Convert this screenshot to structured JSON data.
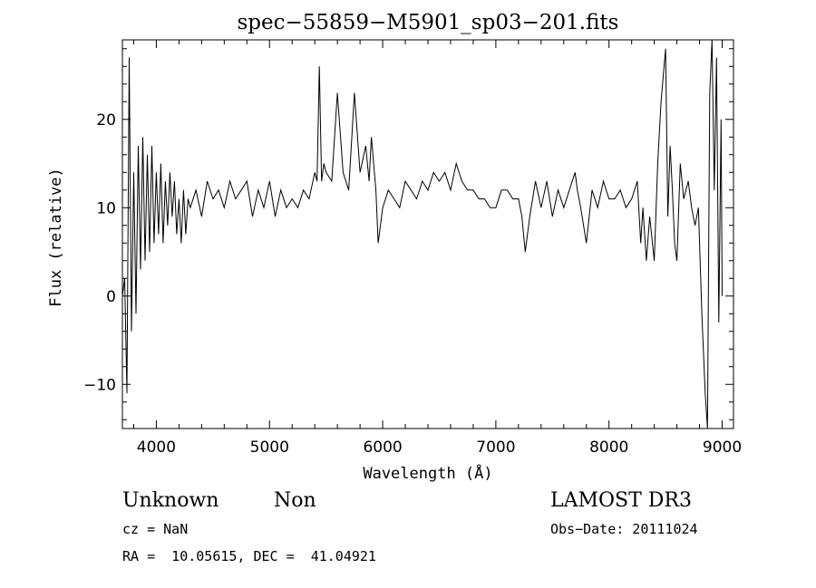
{
  "chart_data": {
    "type": "line",
    "title": "spec−55859−M5901_sp03−201.fits",
    "xlabel": "Wavelength (Å)",
    "ylabel": "Flux (relative)",
    "xlim": [
      3700,
      9100
    ],
    "ylim": [
      -15,
      29
    ],
    "grid": false,
    "legend": "none",
    "x_ticks": [
      {
        "value": 4000,
        "label": "4000"
      },
      {
        "value": 5000,
        "label": "5000"
      },
      {
        "value": 6000,
        "label": "6000"
      },
      {
        "value": 7000,
        "label": "7000"
      },
      {
        "value": 8000,
        "label": "8000"
      },
      {
        "value": 9000,
        "label": "9000"
      }
    ],
    "y_ticks": [
      {
        "value": -10,
        "label": "−10"
      },
      {
        "value": 0,
        "label": "0"
      },
      {
        "value": 10,
        "label": "10"
      },
      {
        "value": 20,
        "label": "20"
      }
    ],
    "series": [
      {
        "x": [
          3700,
          3720,
          3740,
          3760,
          3780,
          3800,
          3820,
          3840,
          3860,
          3880,
          3900,
          3920,
          3940,
          3960,
          3980,
          4000,
          4020,
          4040,
          4060,
          4080,
          4100,
          4120,
          4140,
          4160,
          4180,
          4200,
          4220,
          4240,
          4260,
          4280,
          4300,
          4350,
          4400,
          4450,
          4500,
          4550,
          4600,
          4650,
          4700,
          4750,
          4800,
          4850,
          4900,
          4950,
          5000,
          5050,
          5100,
          5150,
          5200,
          5250,
          5300,
          5350,
          5400,
          5420,
          5440,
          5460,
          5480,
          5500,
          5550,
          5600,
          5650,
          5700,
          5750,
          5800,
          5850,
          5880,
          5900,
          5920,
          5940,
          5960,
          5980,
          6000,
          6050,
          6100,
          6150,
          6200,
          6250,
          6300,
          6350,
          6400,
          6450,
          6500,
          6550,
          6600,
          6650,
          6700,
          6750,
          6800,
          6850,
          6900,
          6950,
          7000,
          7050,
          7100,
          7150,
          7200,
          7230,
          7260,
          7300,
          7350,
          7400,
          7450,
          7500,
          7550,
          7600,
          7650,
          7700,
          7720,
          7750,
          7800,
          7850,
          7900,
          7950,
          8000,
          8050,
          8100,
          8150,
          8200,
          8250,
          8280,
          8300,
          8330,
          8360,
          8400,
          8430,
          8460,
          8500,
          8520,
          8540,
          8560,
          8580,
          8600,
          8630,
          8660,
          8700,
          8730,
          8760,
          8790,
          8820,
          8850,
          8870,
          8890,
          8910,
          8930,
          8950,
          8970,
          8990,
          9000
        ],
        "y": [
          0,
          2,
          -11,
          27,
          -4,
          14,
          -2,
          17,
          3,
          18,
          4,
          16,
          5,
          17,
          6,
          14,
          7,
          15,
          6,
          13,
          8,
          14,
          9,
          13,
          7,
          11,
          6,
          12,
          7,
          11,
          10,
          12,
          9,
          13,
          11,
          12,
          10,
          13,
          11,
          12,
          13,
          9,
          12,
          10,
          13,
          9,
          12,
          10,
          11,
          10,
          12,
          11,
          14,
          13,
          26,
          13,
          15,
          14,
          13,
          23,
          14,
          12,
          23,
          14,
          17,
          13,
          18,
          15,
          12,
          6,
          8,
          10,
          12,
          11,
          10,
          13,
          12,
          11,
          13,
          12,
          14,
          13,
          14,
          12,
          15,
          13,
          12,
          12,
          11,
          11,
          10,
          10,
          12,
          12,
          11,
          11,
          9,
          5,
          9,
          13,
          10,
          13,
          9,
          12,
          10,
          12,
          14,
          12,
          10,
          6,
          12,
          10,
          13,
          11,
          11,
          12,
          10,
          11,
          13,
          6,
          10,
          4,
          9,
          4,
          15,
          22,
          28,
          9,
          17,
          12,
          6,
          4,
          15,
          11,
          13,
          10,
          8,
          10,
          -2,
          -11,
          -15,
          23,
          29,
          12,
          27,
          -3,
          20,
          0
        ]
      }
    ],
    "annotations": {
      "object_class": "Unknown",
      "object_subclass": "Non",
      "redshift": "cz = NaN",
      "coordinates": "RA =  10.05615, DEC =  41.04921",
      "survey": "LAMOST DR3",
      "obs_date": "Obs−Date: 20111024"
    }
  }
}
